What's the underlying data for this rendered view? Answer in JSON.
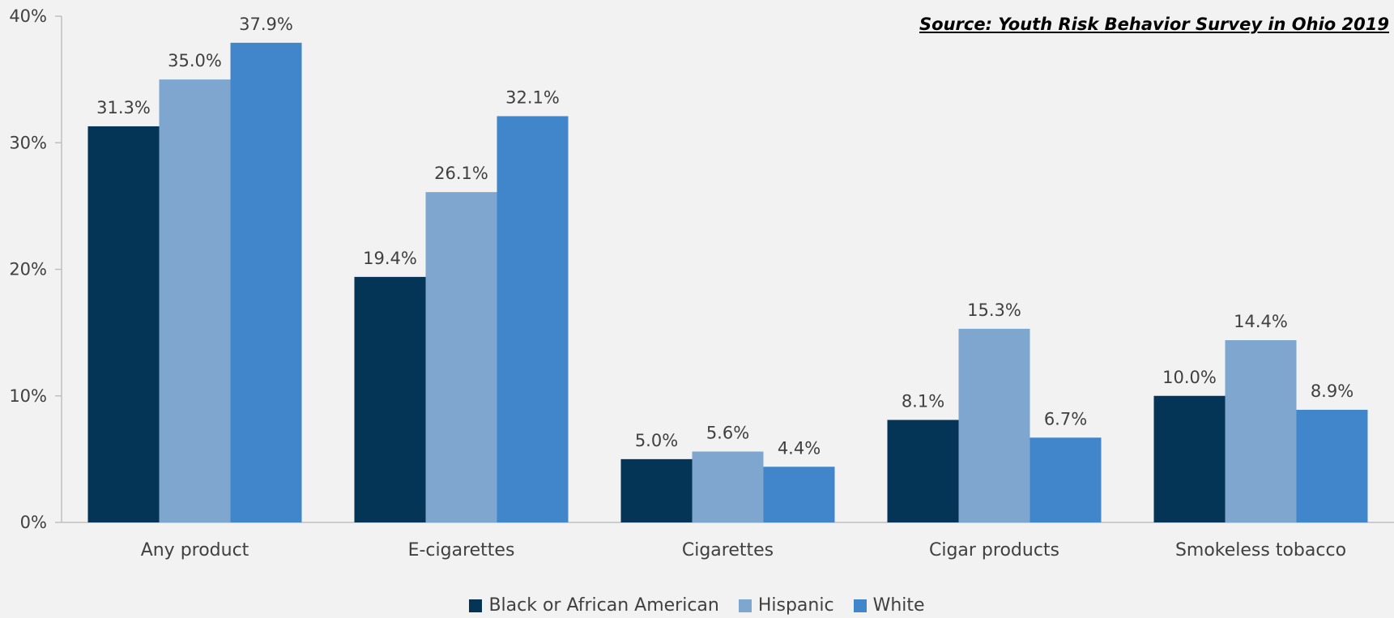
{
  "source_note": "Source: Youth Risk Behavior Survey in Ohio 2019",
  "chart_data": {
    "type": "bar",
    "categories": [
      "Any product",
      "E-cigarettes",
      "Cigarettes",
      "Cigar products",
      "Smokeless tobacco"
    ],
    "series": [
      {
        "name": "Black or African American",
        "color": "#043556",
        "values": [
          31.3,
          19.4,
          5.0,
          8.1,
          10.0
        ],
        "labels": [
          "31.3%",
          "19.4%",
          "5.0%",
          "8.1%",
          "10.0%"
        ]
      },
      {
        "name": "Hispanic",
        "color": "#7fa6cf",
        "values": [
          35.0,
          26.1,
          5.6,
          15.3,
          14.4
        ],
        "labels": [
          "35.0%",
          "26.1%",
          "5.6%",
          "15.3%",
          "14.4%"
        ]
      },
      {
        "name": "White",
        "color": "#4185cb",
        "values": [
          37.9,
          32.1,
          4.4,
          6.7,
          8.9
        ],
        "labels": [
          "37.9%",
          "32.1%",
          "4.4%",
          "6.7%",
          "8.9%"
        ]
      }
    ],
    "ylim": [
      0,
      40
    ],
    "yticks": [
      "0%",
      "10%",
      "20%",
      "30%",
      "40%"
    ],
    "ytick_values": [
      0,
      10,
      20,
      30,
      40
    ],
    "grid": false,
    "legend_position": "bottom-center",
    "xlabel": "",
    "ylabel": ""
  }
}
